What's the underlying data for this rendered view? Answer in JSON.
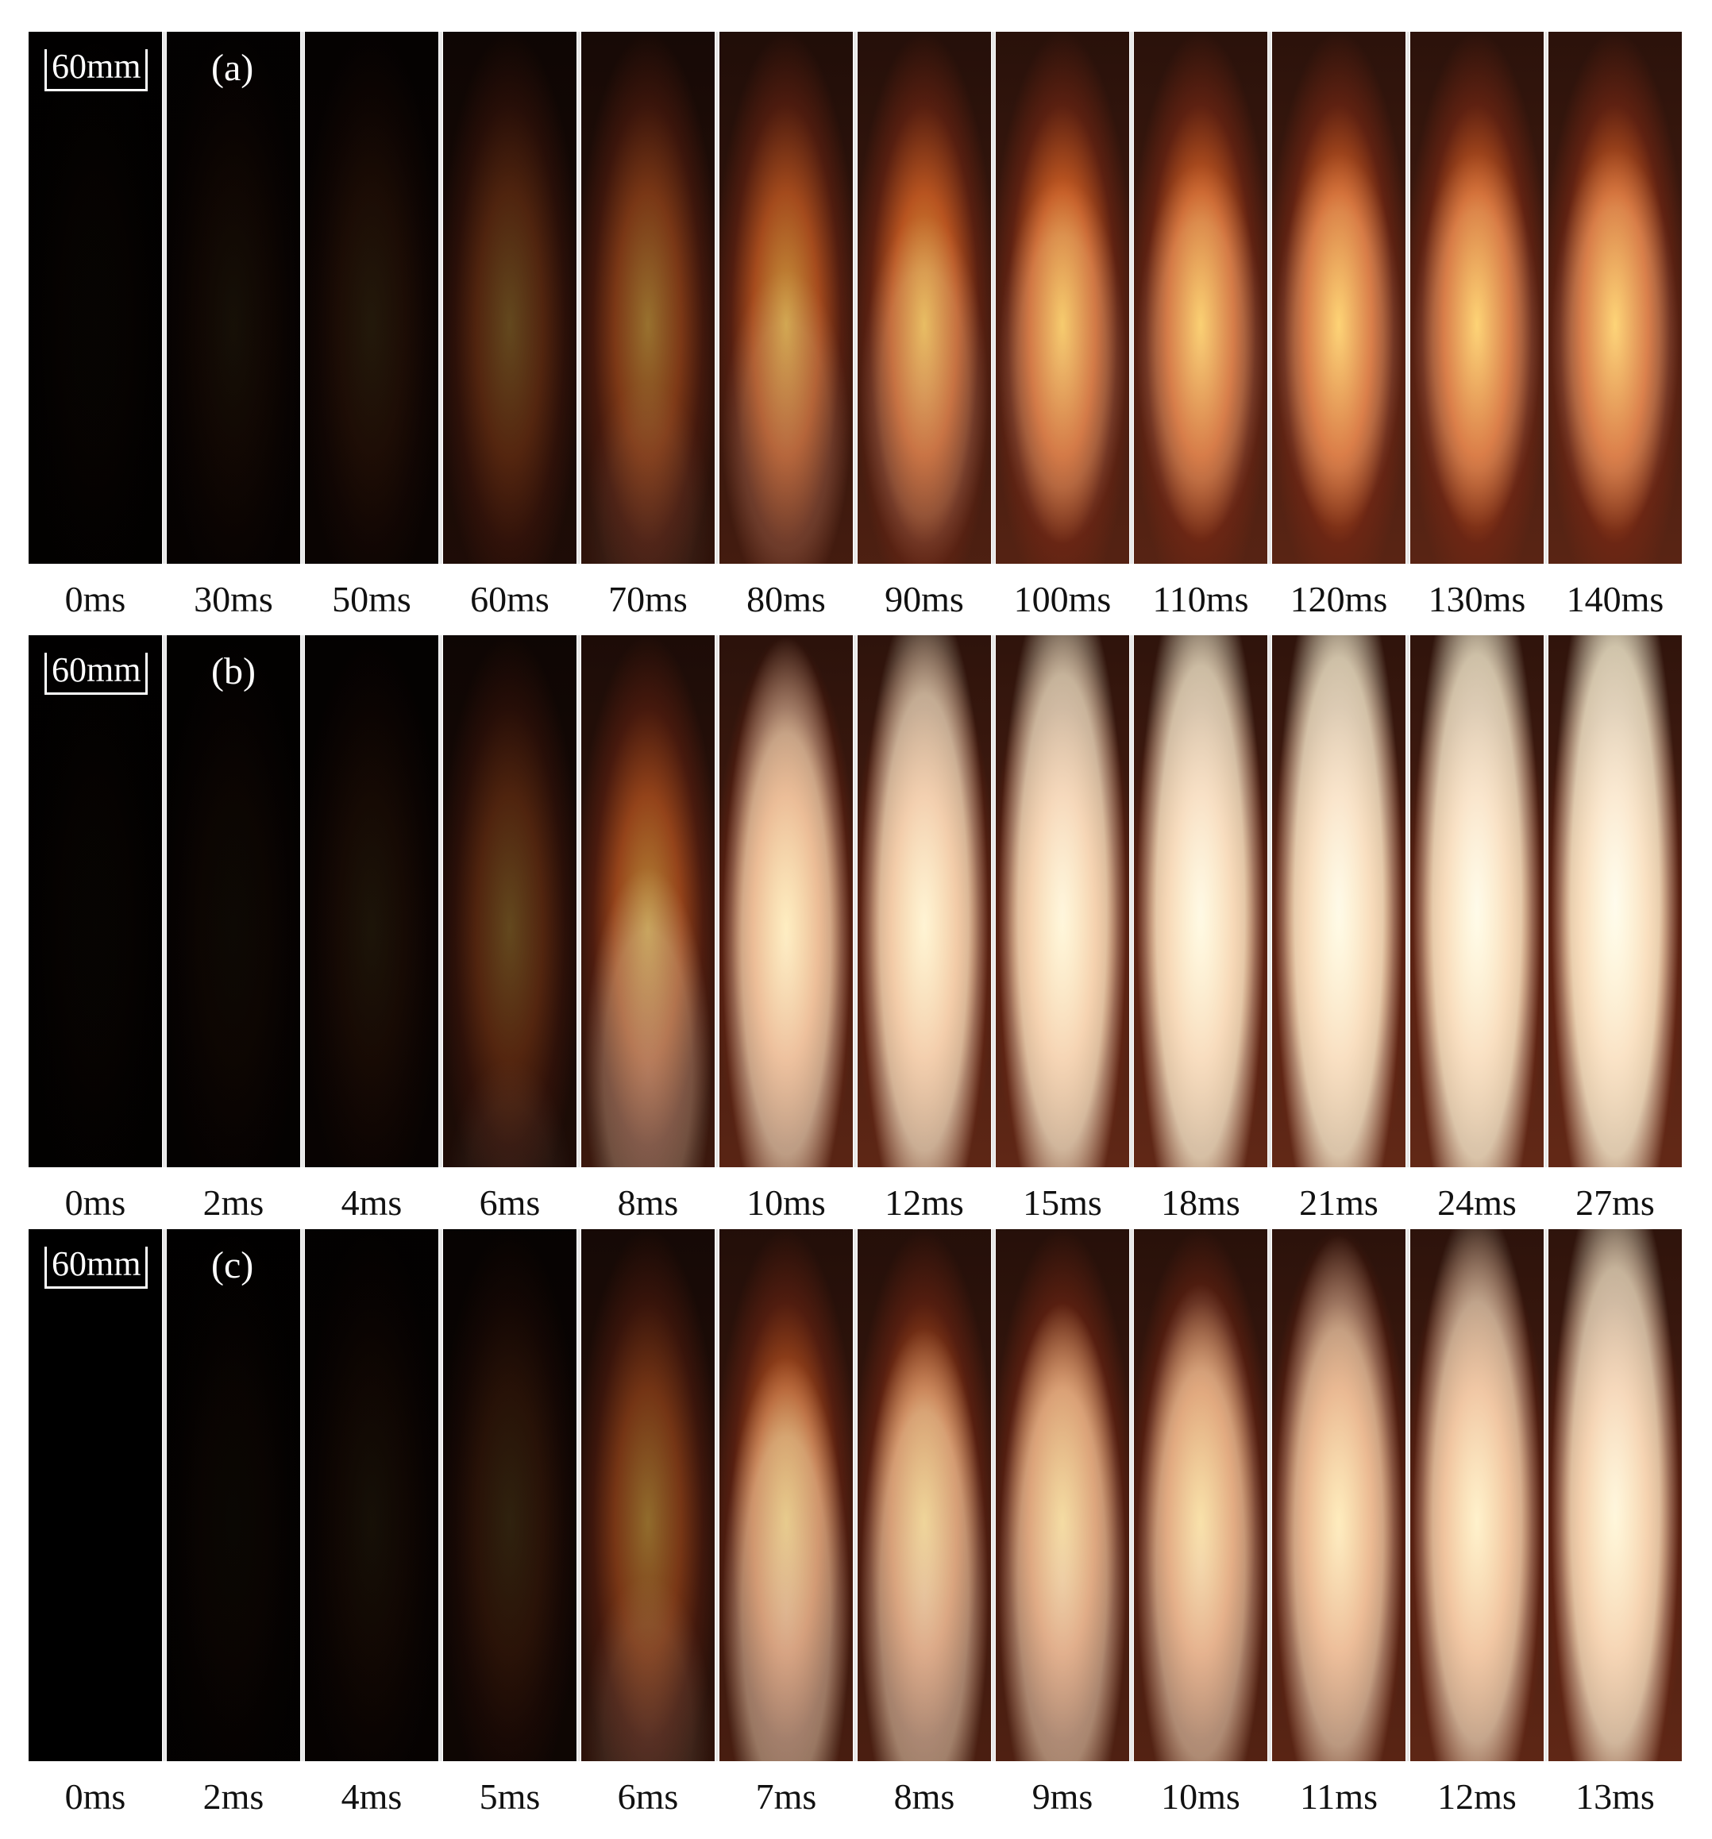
{
  "panels": [
    {
      "letter": "(a)",
      "scale": "60mm",
      "times": [
        "0ms",
        "30ms",
        "50ms",
        "60ms",
        "70ms",
        "80ms",
        "90ms",
        "100ms",
        "110ms",
        "120ms",
        "130ms",
        "140ms"
      ],
      "intensity": [
        0.02,
        0.06,
        0.1,
        0.3,
        0.48,
        0.68,
        0.78,
        0.85,
        0.88,
        0.9,
        0.9,
        0.9
      ],
      "whiteness": [
        0,
        0,
        0,
        0,
        0.05,
        0.15,
        0.2,
        0.22,
        0.24,
        0.24,
        0.24,
        0.25
      ]
    },
    {
      "letter": "(b)",
      "scale": "60mm",
      "times": [
        "0ms",
        "2ms",
        "4ms",
        "6ms",
        "8ms",
        "10ms",
        "12ms",
        "15ms",
        "18ms",
        "21ms",
        "24ms",
        "27ms"
      ],
      "intensity": [
        0.02,
        0.04,
        0.08,
        0.3,
        0.6,
        0.9,
        0.95,
        0.97,
        0.98,
        0.99,
        0.99,
        1.0
      ],
      "whiteness": [
        0,
        0,
        0,
        0.05,
        0.3,
        0.7,
        0.8,
        0.85,
        0.9,
        0.92,
        0.93,
        0.95
      ]
    },
    {
      "letter": "(c)",
      "scale": "60mm",
      "times": [
        "0ms",
        "2ms",
        "4ms",
        "5ms",
        "6ms",
        "7ms",
        "8ms",
        "9ms",
        "10ms",
        "11ms",
        "12ms",
        "13ms"
      ],
      "intensity": [
        0.0,
        0.03,
        0.06,
        0.14,
        0.45,
        0.72,
        0.76,
        0.8,
        0.84,
        0.9,
        0.94,
        0.97
      ],
      "whiteness": [
        0,
        0,
        0,
        0,
        0.1,
        0.5,
        0.55,
        0.58,
        0.6,
        0.68,
        0.75,
        0.85
      ]
    }
  ]
}
